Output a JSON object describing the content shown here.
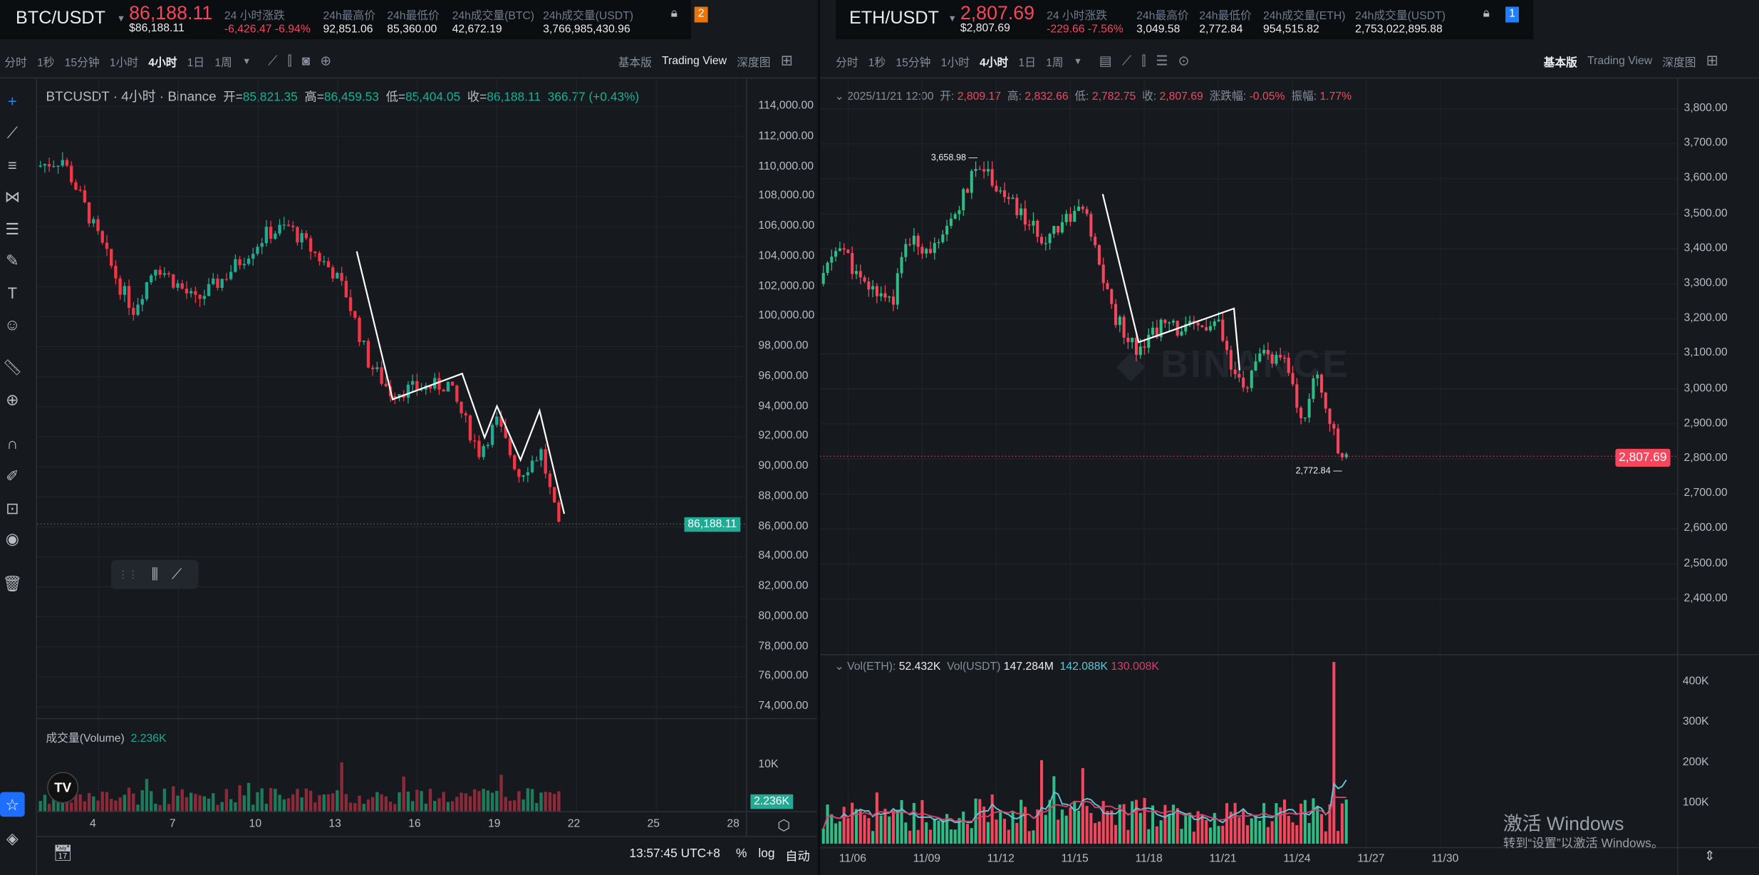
{
  "btc": {
    "header": {
      "symbol": "BTC/USDT",
      "price": "86,188.11",
      "price_usd": "$86,188.11",
      "stats": [
        {
          "label": "24 小时涨跌",
          "value": "-6,426.47 -6.94%",
          "red": true
        },
        {
          "label": "24h最高价",
          "value": "92,851.06"
        },
        {
          "label": "24h最低价",
          "value": "85,360.00"
        },
        {
          "label": "24h成交量(BTC)",
          "value": "42,672.19"
        },
        {
          "label": "24h成交量(USDT)",
          "value": "3,766,985,430.96"
        }
      ],
      "badge": "2"
    },
    "toolbar": {
      "intervals": [
        "分时",
        "1秒",
        "15分钟",
        "1小时",
        "4小时",
        "1日",
        "1周"
      ],
      "views": [
        "基本版",
        "Trading View",
        "深度图"
      ]
    },
    "legend": {
      "title": "BTCUSDT · 4小时 · Binance",
      "o_label": "开=",
      "o": "85,821.35",
      "h_label": "高=",
      "h": "86,459.53",
      "l_label": "低=",
      "l": "85,404.05",
      "c_label": "收=",
      "c": "86,188.11",
      "chg": "366.77 (+0.43%)"
    },
    "price_axis": [
      "114,000.00",
      "112,000.00",
      "110,000.00",
      "108,000.00",
      "106,000.00",
      "104,000.00",
      "102,000.00",
      "100,000.00",
      "98,000.00",
      "96,000.00",
      "94,000.00",
      "92,000.00",
      "90,000.00",
      "88,000.00",
      "86,000.00",
      "84,000.00",
      "82,000.00",
      "80,000.00",
      "78,000.00",
      "76,000.00",
      "74,000.00"
    ],
    "price_tag": "86,188.11",
    "volume": {
      "label": "成交量(Volume)",
      "value": "2.236K",
      "axis": "10K",
      "tag": "2.236K"
    },
    "dates": [
      "4",
      "7",
      "10",
      "13",
      "16",
      "19",
      "22",
      "25",
      "28"
    ],
    "footer": {
      "time": "13:57:45 UTC+8",
      "pct": "%",
      "log": "log",
      "auto": "自动"
    },
    "chart_data": {
      "type": "candlestick",
      "candles": 118,
      "keypoints": [
        [
          0,
          110000
        ],
        [
          6,
          110500
        ],
        [
          10,
          108000
        ],
        [
          19,
          102000
        ],
        [
          22,
          100500
        ],
        [
          27,
          103500
        ],
        [
          36,
          101000
        ],
        [
          42,
          102500
        ],
        [
          52,
          105500
        ],
        [
          57,
          106000
        ],
        [
          67,
          103000
        ],
        [
          70,
          101500
        ],
        [
          75,
          97000
        ],
        [
          80,
          95000
        ],
        [
          93,
          95500
        ],
        [
          100,
          91000
        ],
        [
          104,
          93000
        ],
        [
          109,
          89500
        ],
        [
          114,
          91000
        ],
        [
          118,
          85800
        ]
      ],
      "ylim": [
        73000,
        115000
      ]
    },
    "colors": {
      "up": "#22ab94",
      "down": "#f23645",
      "vol_up": "#1f7a5c",
      "vol_down": "#8c2a3a"
    }
  },
  "eth": {
    "header": {
      "symbol": "ETH/USDT",
      "price": "2,807.69",
      "price_usd": "$2,807.69",
      "stats": [
        {
          "label": "24 小时涨跌",
          "value": "-229.66 -7.56%",
          "red": true
        },
        {
          "label": "24h最高价",
          "value": "3,049.58"
        },
        {
          "label": "24h最低价",
          "value": "2,772.84"
        },
        {
          "label": "24h成交量(ETH)",
          "value": "954,515.82"
        },
        {
          "label": "24h成交量(USDT)",
          "value": "2,753,022,895.88"
        }
      ],
      "badge": "1"
    },
    "toolbar": {
      "intervals": [
        "分时",
        "1秒",
        "15分钟",
        "1小时",
        "4小时",
        "1日",
        "1周"
      ],
      "views": [
        "基本版",
        "Trading View",
        "深度图"
      ]
    },
    "legend": {
      "date": "2025/11/21 12:00",
      "o_label": "开:",
      "o": "2,809.17",
      "h_label": "高:",
      "h": "2,832.66",
      "l_label": "低:",
      "l": "2,782.75",
      "c_label": "收:",
      "c": "2,807.69",
      "chg_label": "涨跌幅:",
      "chg": "-0.05%",
      "amp_label": "振幅:",
      "amp": "1.77%"
    },
    "price_axis": [
      "3,800.00",
      "3,700.00",
      "3,600.00",
      "3,500.00",
      "3,400.00",
      "3,300.00",
      "3,200.00",
      "3,100.00",
      "3,000.00",
      "2,900.00",
      "2,800.00",
      "2,700.00",
      "2,600.00",
      "2,500.00",
      "2,400.00"
    ],
    "price_tag": "2,807.69",
    "max_label": "3,658.98",
    "min_label": "2,772.84",
    "volume": {
      "label": "Vol(ETH):",
      "eth": "52.432K",
      "usdt_label": "Vol(USDT)",
      "usdt": "147.284M",
      "ma1": "142.088K",
      "ma2": "130.008K",
      "axis": [
        "400K",
        "300K",
        "200K",
        "100K"
      ]
    },
    "dates": [
      "11/06",
      "11/09",
      "11/12",
      "11/15",
      "11/18",
      "11/21",
      "11/24",
      "11/27",
      "11/30"
    ],
    "chart_data": {
      "type": "candlestick",
      "candles": 128,
      "keypoints": [
        [
          0,
          3300
        ],
        [
          5,
          3420
        ],
        [
          10,
          3300
        ],
        [
          18,
          3260
        ],
        [
          21,
          3420
        ],
        [
          29,
          3400
        ],
        [
          35,
          3550
        ],
        [
          39,
          3650
        ],
        [
          45,
          3550
        ],
        [
          54,
          3430
        ],
        [
          59,
          3480
        ],
        [
          64,
          3520
        ],
        [
          68,
          3350
        ],
        [
          72,
          3200
        ],
        [
          77,
          3120
        ],
        [
          83,
          3180
        ],
        [
          89,
          3170
        ],
        [
          97,
          3180
        ],
        [
          100,
          3050
        ],
        [
          103,
          3000
        ],
        [
          108,
          3100
        ],
        [
          114,
          3060
        ],
        [
          117,
          2900
        ],
        [
          121,
          3050
        ],
        [
          123,
          2950
        ],
        [
          126,
          2820
        ],
        [
          128,
          2807
        ]
      ],
      "ylim": [
        2350,
        3850
      ]
    },
    "colors": {
      "up": "#2ebd85",
      "down": "#f6465d",
      "ma1": "#5fc8d8",
      "ma2": "#d6406a"
    }
  },
  "watermark": {
    "title": "激活 Windows",
    "sub": "转到“设置”以激活 Windows。"
  }
}
